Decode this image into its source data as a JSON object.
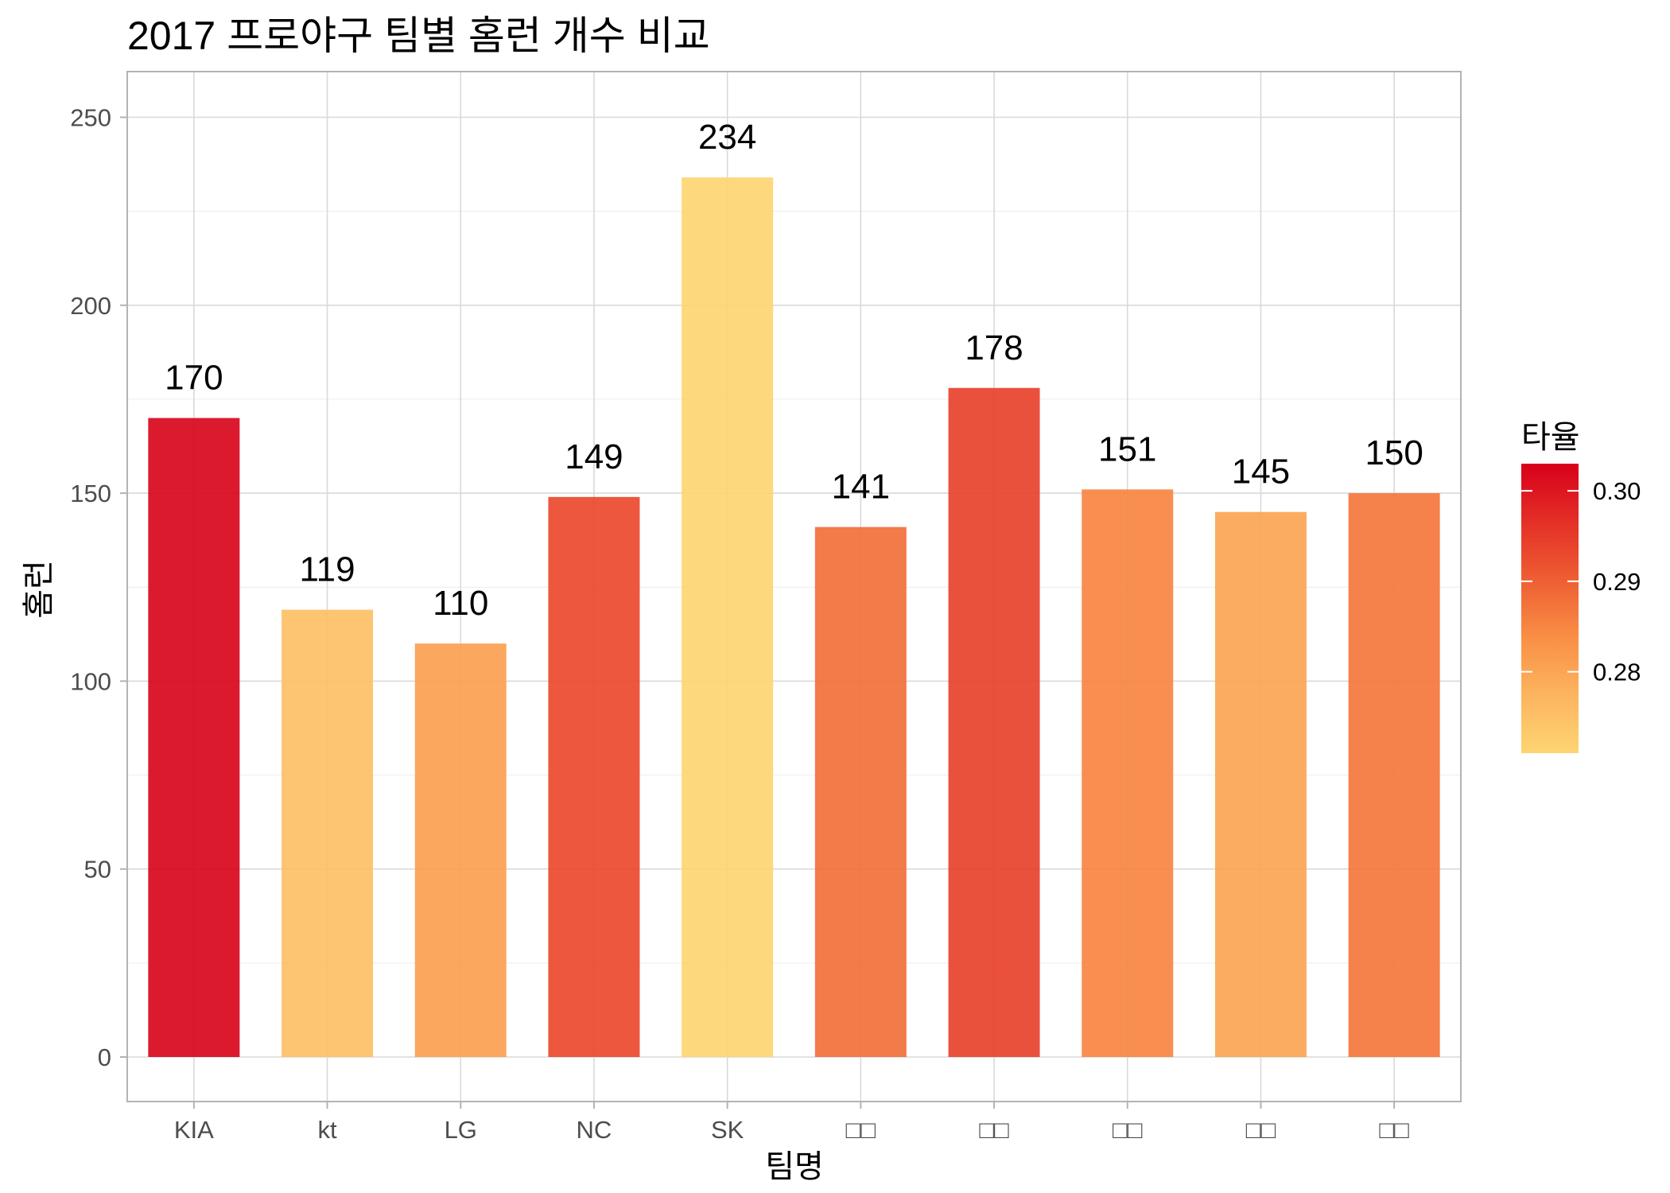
{
  "chart_data": {
    "type": "bar",
    "title": "2017 프로야구 팀별 홈런 개수 비교",
    "xlabel": "팀명",
    "ylabel": "홈런",
    "categories": [
      "KIA",
      "kt",
      "LG",
      "NC",
      "SK",
      "□□",
      "□□",
      "□□",
      "□□",
      "□□"
    ],
    "values": [
      170,
      119,
      110,
      149,
      234,
      141,
      178,
      151,
      145,
      150
    ],
    "fill_values": [
      0.302,
      0.275,
      0.281,
      0.293,
      0.271,
      0.288,
      0.294,
      0.285,
      0.28,
      0.287
    ],
    "ylim": [
      -12,
      262
    ],
    "yticks": [
      0,
      50,
      100,
      150,
      200,
      250
    ],
    "grid": true,
    "legend": {
      "title": "타율",
      "position": "right",
      "ticks": [
        0.28,
        0.29,
        0.3
      ],
      "range": [
        0.271,
        0.303
      ],
      "colors": [
        "#FDD572",
        "#FDB45F",
        "#F98F45",
        "#EE5E33",
        "#E42F27",
        "#D7001A"
      ]
    },
    "data_labels": [
      "170",
      "119",
      "110",
      "149",
      "234",
      "141",
      "178",
      "151",
      "145",
      "150"
    ]
  }
}
